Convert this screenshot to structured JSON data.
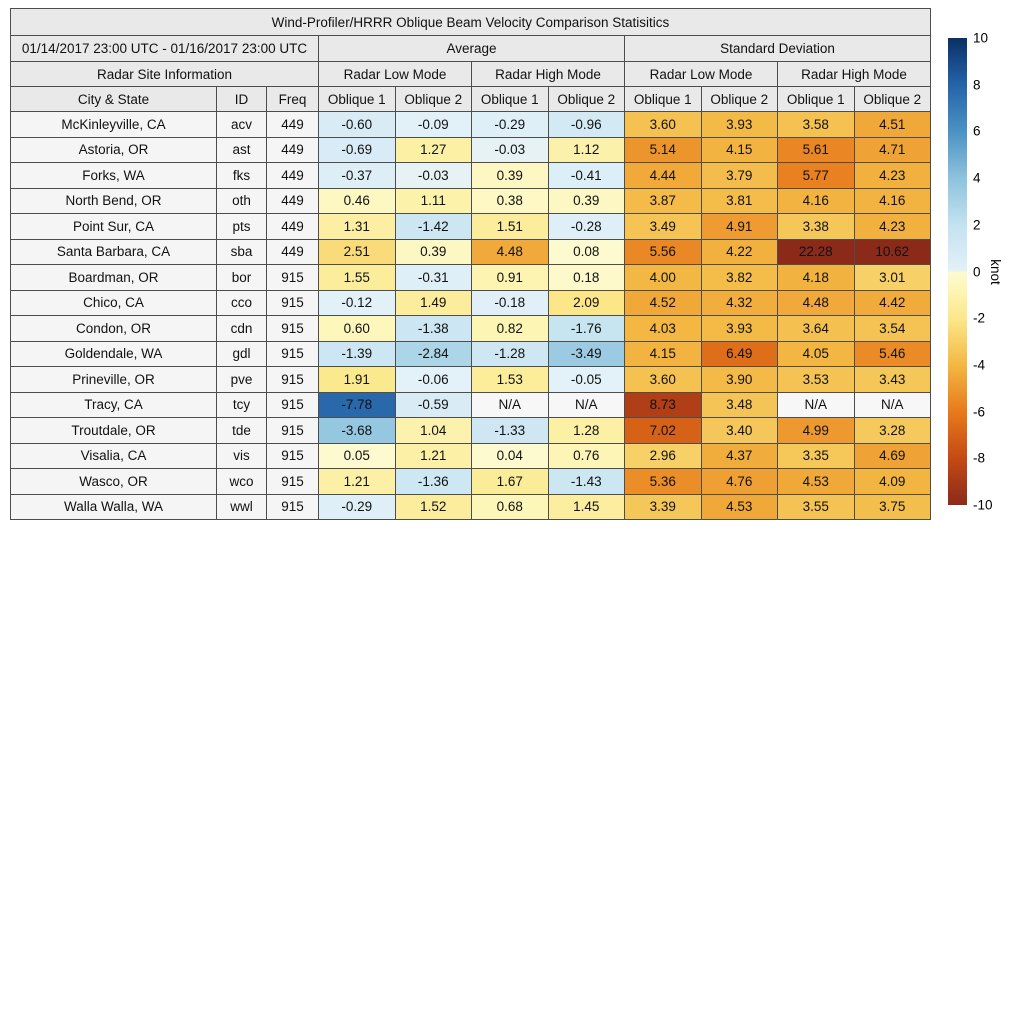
{
  "chart_data": {
    "type": "heatmap",
    "title": "Wind-Profiler/HRRR Oblique Beam Velocity Comparison Statisitics",
    "date_range": "01/14/2017 23:00 UTC - 01/16/2017 23:00 UTC",
    "group_headers": [
      "Average",
      "Standard Deviation"
    ],
    "site_info_header": "Radar Site Information",
    "mode_headers": [
      "Radar Low Mode",
      "Radar High Mode",
      "Radar Low Mode",
      "Radar High Mode"
    ],
    "columns": [
      "City & State",
      "ID",
      "Freq",
      "Oblique 1",
      "Oblique 2",
      "Oblique 1",
      "Oblique 2",
      "Oblique 1",
      "Oblique 2",
      "Oblique 1",
      "Oblique 2"
    ],
    "na_text": "N/A",
    "na_color": "#f7f7f7",
    "rows": [
      {
        "city": "McKinleyville, CA",
        "id": "acv",
        "freq": "449",
        "values": [
          -0.6,
          -0.09,
          -0.29,
          -0.96,
          3.6,
          3.93,
          3.58,
          4.51
        ]
      },
      {
        "city": "Astoria, OR",
        "id": "ast",
        "freq": "449",
        "values": [
          -0.69,
          1.27,
          -0.03,
          1.12,
          5.14,
          4.15,
          5.61,
          4.71
        ]
      },
      {
        "city": "Forks, WA",
        "id": "fks",
        "freq": "449",
        "values": [
          -0.37,
          -0.03,
          0.39,
          -0.41,
          4.44,
          3.79,
          5.77,
          4.23
        ]
      },
      {
        "city": "North Bend, OR",
        "id": "oth",
        "freq": "449",
        "values": [
          0.46,
          1.11,
          0.38,
          0.39,
          3.87,
          3.81,
          4.16,
          4.16
        ]
      },
      {
        "city": "Point Sur, CA",
        "id": "pts",
        "freq": "449",
        "values": [
          1.31,
          -1.42,
          1.51,
          -0.28,
          3.49,
          4.91,
          3.38,
          4.23
        ]
      },
      {
        "city": "Santa Barbara, CA",
        "id": "sba",
        "freq": "449",
        "values": [
          2.51,
          0.39,
          4.48,
          0.08,
          5.56,
          4.22,
          22.28,
          10.62
        ]
      },
      {
        "city": "Boardman, OR",
        "id": "bor",
        "freq": "915",
        "values": [
          1.55,
          -0.31,
          0.91,
          0.18,
          4.0,
          3.82,
          4.18,
          3.01
        ]
      },
      {
        "city": "Chico, CA",
        "id": "cco",
        "freq": "915",
        "values": [
          -0.12,
          1.49,
          -0.18,
          2.09,
          4.52,
          4.32,
          4.48,
          4.42
        ]
      },
      {
        "city": "Condon, OR",
        "id": "cdn",
        "freq": "915",
        "values": [
          0.6,
          -1.38,
          0.82,
          -1.76,
          4.03,
          3.93,
          3.64,
          3.54
        ]
      },
      {
        "city": "Goldendale, WA",
        "id": "gdl",
        "freq": "915",
        "values": [
          -1.39,
          -2.84,
          -1.28,
          -3.49,
          4.15,
          6.49,
          4.05,
          5.46
        ]
      },
      {
        "city": "Prineville, OR",
        "id": "pve",
        "freq": "915",
        "values": [
          1.91,
          -0.06,
          1.53,
          -0.05,
          3.6,
          3.9,
          3.53,
          3.43
        ]
      },
      {
        "city": "Tracy, CA",
        "id": "tcy",
        "freq": "915",
        "values": [
          -7.78,
          -0.59,
          null,
          null,
          8.73,
          3.48,
          null,
          null
        ]
      },
      {
        "city": "Troutdale, OR",
        "id": "tde",
        "freq": "915",
        "values": [
          -3.68,
          1.04,
          -1.33,
          1.28,
          7.02,
          3.4,
          4.99,
          3.28
        ]
      },
      {
        "city": "Visalia, CA",
        "id": "vis",
        "freq": "915",
        "values": [
          0.05,
          1.21,
          0.04,
          0.76,
          2.96,
          4.37,
          3.35,
          4.69
        ]
      },
      {
        "city": "Wasco, OR",
        "id": "wco",
        "freq": "915",
        "values": [
          1.21,
          -1.36,
          1.67,
          -1.43,
          5.36,
          4.76,
          4.53,
          4.09
        ]
      },
      {
        "city": "Walla Walla, WA",
        "id": "wwl",
        "freq": "915",
        "values": [
          -0.29,
          1.52,
          0.68,
          1.45,
          3.39,
          4.53,
          3.55,
          3.75
        ]
      }
    ],
    "colorbar": {
      "label": "knot",
      "min": -10,
      "max": 10,
      "ticks": [
        10,
        8,
        6,
        4,
        2,
        0,
        -2,
        -4,
        -6,
        -8,
        -10
      ],
      "stops": [
        [
          0.0,
          "#0b2f66"
        ],
        [
          0.1,
          "#2563a8"
        ],
        [
          0.2,
          "#4b92c4"
        ],
        [
          0.3,
          "#8ec2de"
        ],
        [
          0.4,
          "#c3e2f0"
        ],
        [
          0.47,
          "#d9ecf6"
        ],
        [
          0.498,
          "#e3f1f8"
        ],
        [
          0.502,
          "#fdfad0"
        ],
        [
          0.53,
          "#fdf7bc"
        ],
        [
          0.6,
          "#fbe88b"
        ],
        [
          0.7,
          "#f3b843"
        ],
        [
          0.8,
          "#e87a1c"
        ],
        [
          0.9,
          "#c44a14"
        ],
        [
          1.0,
          "#8c2a1a"
        ]
      ]
    }
  }
}
